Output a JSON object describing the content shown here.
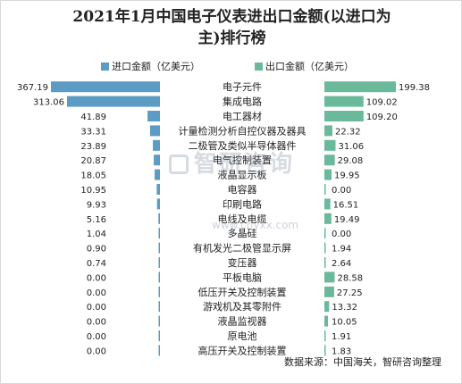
{
  "title_line1": "2021年1月中国电子仪表进出口金额(以进口为",
  "title_line2": "主)排行榜",
  "watermark_text": "智研咨询",
  "watermark_url": "www.chyxx.com",
  "source": "数据来源：中国海关，智研咨询整理",
  "colors": {
    "import": "#5b9bc4",
    "export": "#69b99a"
  },
  "chart_data": {
    "type": "bar",
    "title": "2021年1月中国电子仪表进出口金额(以进口为主)排行榜",
    "categories": [
      "电子元件",
      "集成电路",
      "电工器材",
      "计量检测分析自控仪器及器具",
      "二极管及类似半导体器件",
      "电气控制装置",
      "液晶显示板",
      "电容器",
      "印刷电路",
      "电线及电缆",
      "多晶硅",
      "有机发光二极管显示屏",
      "变压器",
      "平板电脑",
      "低压开关及控制装置",
      "游戏机及其零附件",
      "液晶监视器",
      "原电池",
      "高压开关及控制装置"
    ],
    "series": [
      {
        "name": "进口金额（亿美元）",
        "labels": [
          "367.19",
          "313.06",
          "41.89",
          "33.31",
          "23.89",
          "20.87",
          "18.05",
          "10.95",
          "9.93",
          "5.16",
          "1.04",
          "0.90",
          "0.74",
          "0.00",
          "0.00",
          "0.00",
          "0.00",
          "0.00",
          "0.00"
        ],
        "values": [
          367.19,
          313.06,
          41.89,
          33.31,
          23.89,
          20.87,
          18.05,
          10.95,
          9.93,
          5.16,
          1.04,
          0.9,
          0.74,
          0.0,
          0.0,
          0.0,
          0.0,
          0.0,
          0.0
        ]
      },
      {
        "name": "出口金额（亿美元）",
        "labels": [
          "199.38",
          "109.02",
          "109.20",
          "22.32",
          "31.06",
          "29.08",
          "19.95",
          "0.00",
          "16.51",
          "19.49",
          "0.00",
          "1.94",
          "2.64",
          "28.58",
          "27.25",
          "13.32",
          "10.05",
          "1.91",
          "1.83"
        ],
        "values": [
          199.38,
          109.02,
          109.2,
          22.32,
          31.06,
          29.08,
          19.95,
          0.0,
          16.51,
          19.49,
          0.0,
          1.94,
          2.64,
          28.58,
          27.25,
          13.32,
          10.05,
          1.91,
          1.83
        ]
      }
    ],
    "legend": "top"
  }
}
